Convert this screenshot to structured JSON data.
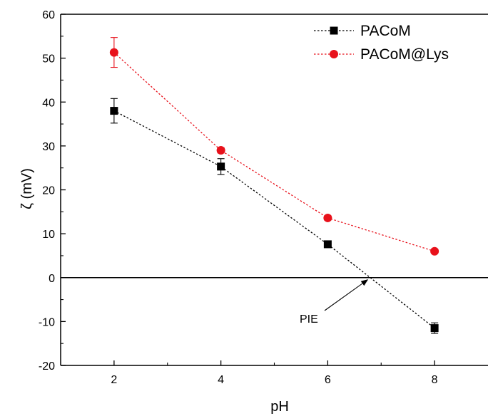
{
  "chart_data": {
    "type": "line",
    "xlabel": "pH",
    "ylabel": "ζ (mV)",
    "xlim": [
      1,
      9
    ],
    "ylim": [
      -20,
      60
    ],
    "x_ticks": [
      2,
      4,
      6,
      8
    ],
    "y_ticks": [
      -20,
      -10,
      0,
      10,
      20,
      30,
      40,
      50,
      60
    ],
    "x_tick_labels": [
      "2",
      "4",
      "6",
      "8"
    ],
    "y_tick_labels": [
      "-20",
      "-10",
      "0",
      "10",
      "20",
      "30",
      "40",
      "50",
      "60"
    ],
    "legend_position": "top-right",
    "grid": false,
    "zero_line": true,
    "series": [
      {
        "name": "PACoM",
        "marker": "square",
        "color": "#000000",
        "x": [
          2,
          4,
          6,
          8
        ],
        "y": [
          38,
          25.3,
          7.6,
          -11.5
        ],
        "error": [
          2.8,
          1.8,
          0.5,
          1.2
        ]
      },
      {
        "name": "PACoM@Lys",
        "marker": "circle",
        "color": "#e8111b",
        "x": [
          2,
          4,
          6,
          8
        ],
        "y": [
          51.3,
          29,
          13.6,
          6
        ],
        "error": [
          3.4,
          0.6,
          0.5,
          0.4
        ]
      }
    ],
    "annotations": [
      {
        "text": "PIE",
        "points_to": {
          "x": 6.8,
          "y": 0
        }
      }
    ]
  }
}
